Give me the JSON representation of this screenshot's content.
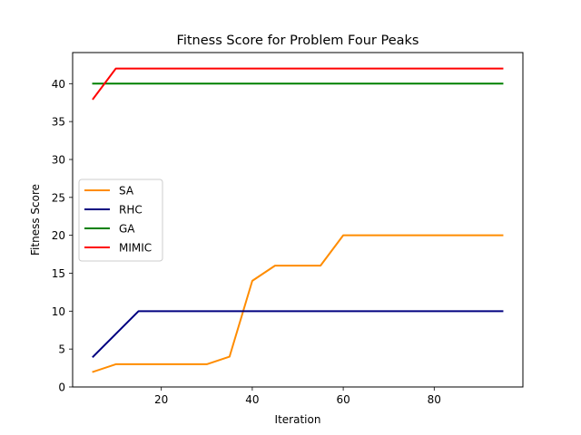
{
  "chart_data": {
    "type": "line",
    "title": "Fitness Score for Problem Four Peaks",
    "xlabel": "Iteration",
    "ylabel": "Fitness Score",
    "xlim": [
      0.5,
      99.5
    ],
    "ylim": [
      0,
      44.1
    ],
    "xticks": [
      20,
      40,
      60,
      80
    ],
    "yticks": [
      0,
      5,
      10,
      15,
      20,
      25,
      30,
      35,
      40
    ],
    "grid": false,
    "legend_position": "center-left",
    "x": [
      5,
      10,
      15,
      20,
      25,
      30,
      35,
      40,
      45,
      50,
      55,
      60,
      65,
      70,
      75,
      80,
      85,
      90,
      95
    ],
    "series": [
      {
        "name": "SA",
        "color": "#ff8c00",
        "values": [
          2,
          3,
          3,
          3,
          3,
          3,
          4,
          14,
          16,
          16,
          16,
          20,
          20,
          20,
          20,
          20,
          20,
          20,
          20
        ]
      },
      {
        "name": "RHC",
        "color": "#000080",
        "values": [
          4,
          7,
          10,
          10,
          10,
          10,
          10,
          10,
          10,
          10,
          10,
          10,
          10,
          10,
          10,
          10,
          10,
          10,
          10
        ]
      },
      {
        "name": "GA",
        "color": "#008000",
        "values": [
          40,
          40,
          40,
          40,
          40,
          40,
          40,
          40,
          40,
          40,
          40,
          40,
          40,
          40,
          40,
          40,
          40,
          40,
          40
        ]
      },
      {
        "name": "MIMIC",
        "color": "#ff0000",
        "values": [
          38,
          42,
          42,
          42,
          42,
          42,
          42,
          42,
          42,
          42,
          42,
          42,
          42,
          42,
          42,
          42,
          42,
          42,
          42
        ]
      }
    ]
  }
}
